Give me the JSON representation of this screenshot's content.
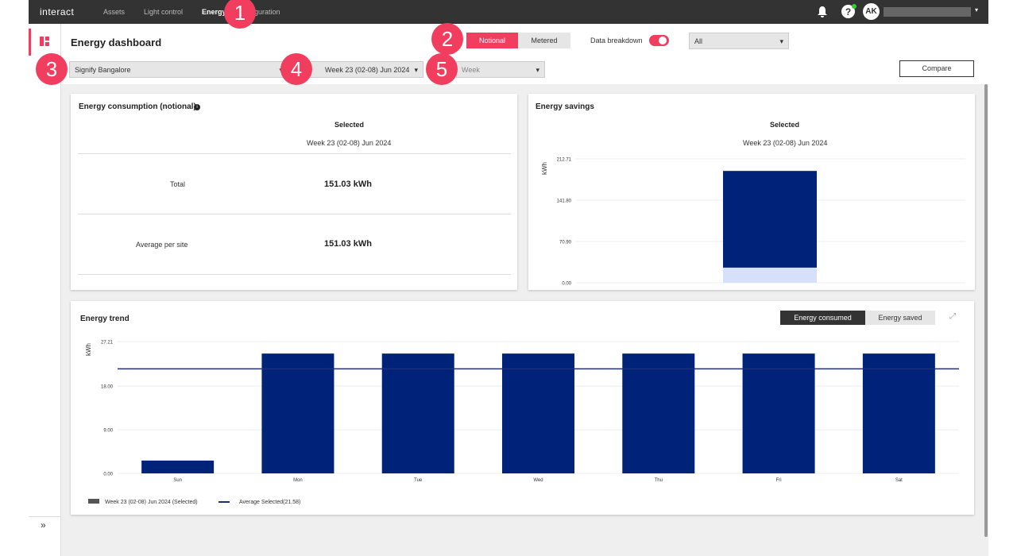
{
  "nav": {
    "brand": "interact",
    "items": [
      "Assets",
      "Light control",
      "Energy",
      "Configuration"
    ],
    "avatar": "AK"
  },
  "callouts": [
    1,
    2,
    3,
    4,
    5
  ],
  "header": {
    "title": "Energy dashboard",
    "modes": [
      "Notional",
      "Metered"
    ],
    "breakdown_label": "Data breakdown",
    "breakdown_select": "All"
  },
  "filters": {
    "site": "Signify Bangalore",
    "period": "Week 23 (02-08) Jun 2024",
    "granularity": "Week",
    "compare": "Compare"
  },
  "consumption": {
    "title": "Energy consumption (notional)",
    "column": "Selected",
    "period": "Week 23 (02-08) Jun 2024",
    "rows": [
      {
        "label": "Total",
        "value": "151.03 kWh"
      },
      {
        "label": "Average per site",
        "value": "151.03 kWh"
      }
    ]
  },
  "savings_chart": {
    "type": "bar",
    "stacked": true,
    "title": "Energy savings",
    "column": "Selected",
    "period": "Week 23 (02-08) Jun 2024",
    "y_label": "kWh",
    "ylim": [
      0,
      212.71
    ],
    "yticks": [
      {
        "value": 0,
        "label": "0.00"
      },
      {
        "value": 70.9,
        "label": "70.90"
      },
      {
        "value": 141.8,
        "label": "141.80"
      },
      212.71
    ],
    "grid": true,
    "categories": [
      null
    ],
    "series": [
      {
        "color": "#d6e0fb",
        "values": [
          26
        ]
      },
      {
        "color": "#00237a",
        "values": [
          166
        ]
      }
    ]
  },
  "trend_chart": {
    "type": "bar",
    "title": "Energy trend",
    "tabs": [
      "Energy consumed",
      "Energy saved"
    ],
    "y_label": "kWh",
    "ylim": [
      0,
      27.21
    ],
    "yticks": [
      {
        "value": 0,
        "label": "0.00"
      },
      {
        "value": 9,
        "label": "9.00"
      },
      {
        "value": 18,
        "label": "18.00"
      },
      27.21
    ],
    "grid": true,
    "categories": [
      "Sun",
      "Mon",
      "Tue",
      "Wed",
      "Thu",
      "Fri",
      "Sat"
    ],
    "series": [
      {
        "name": "Week 23 (02-08) Jun 2024  (Selected)",
        "color": "#00237a",
        "values": [
          2.65,
          24.73,
          24.73,
          24.73,
          24.73,
          24.73,
          24.73
        ]
      }
    ],
    "average": {
      "name": "Average Selected(21.58)",
      "color": "#1b2f7a",
      "value": 21.58
    }
  }
}
